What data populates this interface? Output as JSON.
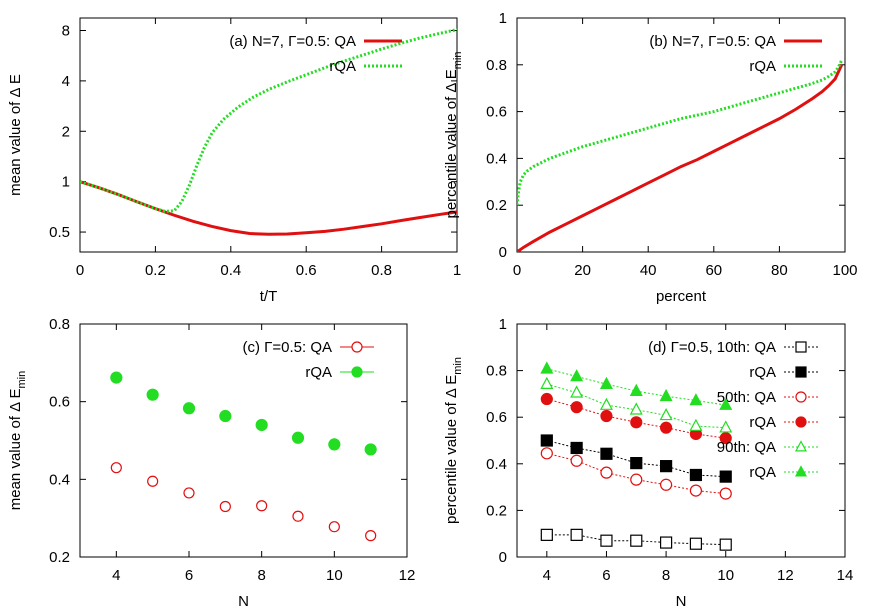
{
  "colors": {
    "qa": "#e01010",
    "rqa": "#22dd22",
    "black": "#000000"
  },
  "chart_data": [
    {
      "id": "a",
      "type": "line",
      "ylabel": "mean value of Δ E",
      "xlabel": "t/T",
      "xlim": [
        0,
        1
      ],
      "ylim": [
        0.38,
        9.5
      ],
      "yscale": "log",
      "xticks": [
        {
          "v": 0,
          "label": "0"
        },
        {
          "v": 0.2,
          "label": "0.2"
        },
        {
          "v": 0.4,
          "label": "0.4"
        },
        {
          "v": 0.6,
          "label": "0.6"
        },
        {
          "v": 0.8,
          "label": "0.8"
        },
        {
          "v": 1,
          "label": "1"
        }
      ],
      "yticks": [
        {
          "v": 0.5,
          "label": "0.5"
        },
        {
          "v": 1,
          "label": "1"
        },
        {
          "v": 2,
          "label": "2"
        },
        {
          "v": 4,
          "label": "4"
        },
        {
          "v": 8,
          "label": "8"
        }
      ],
      "series": [
        {
          "name": "(a) N=7, Γ=0.5: QA",
          "style": "qa-solid",
          "x": [
            0,
            0.05,
            0.1,
            0.15,
            0.2,
            0.25,
            0.3,
            0.35,
            0.4,
            0.45,
            0.5,
            0.55,
            0.6,
            0.65,
            0.7,
            0.75,
            0.8,
            0.85,
            0.9,
            0.95,
            1.0
          ],
          "y": [
            1.0,
            0.92,
            0.84,
            0.76,
            0.69,
            0.63,
            0.58,
            0.54,
            0.51,
            0.49,
            0.485,
            0.487,
            0.495,
            0.505,
            0.52,
            0.54,
            0.56,
            0.585,
            0.61,
            0.635,
            0.66
          ]
        },
        {
          "name": "rQA",
          "style": "rqa-dotted",
          "x": [
            0,
            0.05,
            0.1,
            0.15,
            0.2,
            0.225,
            0.25,
            0.27,
            0.29,
            0.31,
            0.33,
            0.35,
            0.38,
            0.42,
            0.46,
            0.5,
            0.55,
            0.6,
            0.65,
            0.7,
            0.75,
            0.8,
            0.85,
            0.9,
            0.95,
            1.0
          ],
          "y": [
            1.0,
            0.92,
            0.84,
            0.76,
            0.69,
            0.665,
            0.67,
            0.76,
            0.95,
            1.25,
            1.6,
            1.95,
            2.35,
            2.8,
            3.2,
            3.55,
            3.95,
            4.35,
            4.8,
            5.25,
            5.7,
            6.2,
            6.7,
            7.2,
            7.65,
            8.1
          ]
        }
      ]
    },
    {
      "id": "b",
      "type": "line",
      "ylabel": "percentile value of Δ E",
      "ylabel_sub": "min",
      "xlabel": "percent",
      "xlim": [
        0,
        100
      ],
      "ylim": [
        0,
        1
      ],
      "xticks": [
        {
          "v": 0,
          "label": "0"
        },
        {
          "v": 20,
          "label": "20"
        },
        {
          "v": 40,
          "label": "40"
        },
        {
          "v": 60,
          "label": "60"
        },
        {
          "v": 80,
          "label": "80"
        },
        {
          "v": 100,
          "label": "100"
        }
      ],
      "yticks": [
        {
          "v": 0,
          "label": "0"
        },
        {
          "v": 0.2,
          "label": "0.2"
        },
        {
          "v": 0.4,
          "label": "0.4"
        },
        {
          "v": 0.6,
          "label": "0.6"
        },
        {
          "v": 0.8,
          "label": "0.8"
        },
        {
          "v": 1,
          "label": "1"
        }
      ],
      "series": [
        {
          "name": "(b) N=7, Γ=0.5: QA",
          "style": "qa-solid",
          "x": [
            0,
            2,
            5,
            10,
            15,
            20,
            25,
            30,
            35,
            40,
            45,
            50,
            55,
            60,
            65,
            70,
            75,
            80,
            85,
            90,
            93,
            95,
            97,
            98,
            99
          ],
          "y": [
            0,
            0.02,
            0.045,
            0.085,
            0.12,
            0.155,
            0.19,
            0.225,
            0.26,
            0.295,
            0.33,
            0.365,
            0.395,
            0.43,
            0.465,
            0.5,
            0.535,
            0.57,
            0.61,
            0.655,
            0.685,
            0.71,
            0.74,
            0.77,
            0.8
          ]
        },
        {
          "name": "rQA",
          "style": "rqa-dotted",
          "x": [
            0,
            0.5,
            1,
            2,
            3,
            5,
            10,
            15,
            20,
            25,
            30,
            35,
            40,
            45,
            50,
            55,
            60,
            65,
            70,
            75,
            80,
            85,
            90,
            93,
            95,
            97,
            98,
            99
          ],
          "y": [
            0.2,
            0.26,
            0.3,
            0.33,
            0.345,
            0.365,
            0.4,
            0.425,
            0.45,
            0.47,
            0.49,
            0.51,
            0.53,
            0.55,
            0.57,
            0.585,
            0.6,
            0.62,
            0.64,
            0.66,
            0.68,
            0.7,
            0.72,
            0.735,
            0.75,
            0.77,
            0.79,
            0.82
          ]
        }
      ]
    },
    {
      "id": "c",
      "type": "scatter",
      "ylabel": "mean value of Δ E",
      "ylabel_sub": "min",
      "xlabel": "N",
      "xlim": [
        3,
        12
      ],
      "ylim": [
        0.2,
        0.8
      ],
      "xticks": [
        {
          "v": 4,
          "label": "4"
        },
        {
          "v": 6,
          "label": "6"
        },
        {
          "v": 8,
          "label": "8"
        },
        {
          "v": 10,
          "label": "10"
        },
        {
          "v": 12,
          "label": "12"
        }
      ],
      "yticks": [
        {
          "v": 0.2,
          "label": "0.2"
        },
        {
          "v": 0.4,
          "label": "0.4"
        },
        {
          "v": 0.6,
          "label": "0.6"
        },
        {
          "v": 0.8,
          "label": "0.8"
        }
      ],
      "series": [
        {
          "name": "(c) Γ=0.5: QA",
          "style": "qa-open-circle",
          "x": [
            4,
            5,
            6,
            7,
            8,
            9,
            10,
            11
          ],
          "y": [
            0.43,
            0.395,
            0.365,
            0.33,
            0.332,
            0.305,
            0.278,
            0.255
          ]
        },
        {
          "name": "rQA",
          "style": "rqa-filled-circle",
          "x": [
            4,
            5,
            6,
            7,
            8,
            9,
            10,
            11
          ],
          "y": [
            0.662,
            0.618,
            0.583,
            0.563,
            0.54,
            0.507,
            0.49,
            0.477
          ]
        }
      ]
    },
    {
      "id": "d",
      "type": "line",
      "ylabel": "percentile value of Δ E",
      "ylabel_sub": "min",
      "xlabel": "N",
      "xlim": [
        3,
        14
      ],
      "ylim": [
        0,
        1
      ],
      "xticks": [
        {
          "v": 4,
          "label": "4"
        },
        {
          "v": 6,
          "label": "6"
        },
        {
          "v": 8,
          "label": "8"
        },
        {
          "v": 10,
          "label": "10"
        },
        {
          "v": 12,
          "label": "12"
        },
        {
          "v": 14,
          "label": "14"
        }
      ],
      "yticks": [
        {
          "v": 0,
          "label": "0"
        },
        {
          "v": 0.2,
          "label": "0.2"
        },
        {
          "v": 0.4,
          "label": "0.4"
        },
        {
          "v": 0.6,
          "label": "0.6"
        },
        {
          "v": 0.8,
          "label": "0.8"
        },
        {
          "v": 1,
          "label": "1"
        }
      ],
      "series": [
        {
          "name": "(d) Γ=0.5, 10th: QA",
          "style": "black-open-square",
          "x": [
            4,
            5,
            6,
            7,
            8,
            9,
            10
          ],
          "y": [
            0.095,
            0.095,
            0.07,
            0.07,
            0.062,
            0.057,
            0.053
          ]
        },
        {
          "name": "rQA",
          "style": "black-filled-square",
          "x": [
            4,
            5,
            6,
            7,
            8,
            9,
            10
          ],
          "y": [
            0.5,
            0.468,
            0.443,
            0.403,
            0.39,
            0.352,
            0.345
          ]
        },
        {
          "name": "50th: QA",
          "style": "qa-open-circle",
          "x": [
            4,
            5,
            6,
            7,
            8,
            9,
            10
          ],
          "y": [
            0.445,
            0.413,
            0.362,
            0.332,
            0.31,
            0.285,
            0.272
          ]
        },
        {
          "name": "rQA",
          "style": "qa-filled-circle",
          "x": [
            4,
            5,
            6,
            7,
            8,
            9,
            10
          ],
          "y": [
            0.678,
            0.643,
            0.605,
            0.578,
            0.555,
            0.528,
            0.51
          ]
        },
        {
          "name": "90th: QA",
          "style": "rqa-open-triangle",
          "x": [
            4,
            5,
            6,
            7,
            8,
            9,
            10
          ],
          "y": [
            0.742,
            0.705,
            0.652,
            0.632,
            0.608,
            0.562,
            0.555
          ]
        },
        {
          "name": "rQA",
          "style": "rqa-filled-triangle",
          "x": [
            4,
            5,
            6,
            7,
            8,
            9,
            10
          ],
          "y": [
            0.808,
            0.775,
            0.742,
            0.712,
            0.69,
            0.672,
            0.652
          ]
        }
      ]
    }
  ]
}
